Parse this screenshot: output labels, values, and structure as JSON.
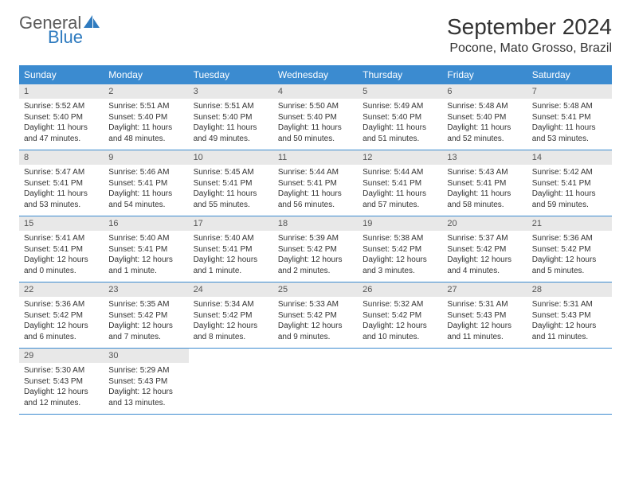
{
  "logo": {
    "general": "General",
    "blue": "Blue"
  },
  "title": "September 2024",
  "location": "Pocone, Mato Grosso, Brazil",
  "colors": {
    "header_bg": "#3b8bd0",
    "header_text": "#ffffff",
    "daynum_bg": "#e8e8e8",
    "week_border": "#3b8bd0",
    "logo_gray": "#5a5a5a",
    "logo_blue": "#2f7bbf"
  },
  "day_labels": [
    "Sunday",
    "Monday",
    "Tuesday",
    "Wednesday",
    "Thursday",
    "Friday",
    "Saturday"
  ],
  "weeks": [
    [
      {
        "n": "1",
        "sr": "Sunrise: 5:52 AM",
        "ss": "Sunset: 5:40 PM",
        "dl": "Daylight: 11 hours and 47 minutes."
      },
      {
        "n": "2",
        "sr": "Sunrise: 5:51 AM",
        "ss": "Sunset: 5:40 PM",
        "dl": "Daylight: 11 hours and 48 minutes."
      },
      {
        "n": "3",
        "sr": "Sunrise: 5:51 AM",
        "ss": "Sunset: 5:40 PM",
        "dl": "Daylight: 11 hours and 49 minutes."
      },
      {
        "n": "4",
        "sr": "Sunrise: 5:50 AM",
        "ss": "Sunset: 5:40 PM",
        "dl": "Daylight: 11 hours and 50 minutes."
      },
      {
        "n": "5",
        "sr": "Sunrise: 5:49 AM",
        "ss": "Sunset: 5:40 PM",
        "dl": "Daylight: 11 hours and 51 minutes."
      },
      {
        "n": "6",
        "sr": "Sunrise: 5:48 AM",
        "ss": "Sunset: 5:40 PM",
        "dl": "Daylight: 11 hours and 52 minutes."
      },
      {
        "n": "7",
        "sr": "Sunrise: 5:48 AM",
        "ss": "Sunset: 5:41 PM",
        "dl": "Daylight: 11 hours and 53 minutes."
      }
    ],
    [
      {
        "n": "8",
        "sr": "Sunrise: 5:47 AM",
        "ss": "Sunset: 5:41 PM",
        "dl": "Daylight: 11 hours and 53 minutes."
      },
      {
        "n": "9",
        "sr": "Sunrise: 5:46 AM",
        "ss": "Sunset: 5:41 PM",
        "dl": "Daylight: 11 hours and 54 minutes."
      },
      {
        "n": "10",
        "sr": "Sunrise: 5:45 AM",
        "ss": "Sunset: 5:41 PM",
        "dl": "Daylight: 11 hours and 55 minutes."
      },
      {
        "n": "11",
        "sr": "Sunrise: 5:44 AM",
        "ss": "Sunset: 5:41 PM",
        "dl": "Daylight: 11 hours and 56 minutes."
      },
      {
        "n": "12",
        "sr": "Sunrise: 5:44 AM",
        "ss": "Sunset: 5:41 PM",
        "dl": "Daylight: 11 hours and 57 minutes."
      },
      {
        "n": "13",
        "sr": "Sunrise: 5:43 AM",
        "ss": "Sunset: 5:41 PM",
        "dl": "Daylight: 11 hours and 58 minutes."
      },
      {
        "n": "14",
        "sr": "Sunrise: 5:42 AM",
        "ss": "Sunset: 5:41 PM",
        "dl": "Daylight: 11 hours and 59 minutes."
      }
    ],
    [
      {
        "n": "15",
        "sr": "Sunrise: 5:41 AM",
        "ss": "Sunset: 5:41 PM",
        "dl": "Daylight: 12 hours and 0 minutes."
      },
      {
        "n": "16",
        "sr": "Sunrise: 5:40 AM",
        "ss": "Sunset: 5:41 PM",
        "dl": "Daylight: 12 hours and 1 minute."
      },
      {
        "n": "17",
        "sr": "Sunrise: 5:40 AM",
        "ss": "Sunset: 5:41 PM",
        "dl": "Daylight: 12 hours and 1 minute."
      },
      {
        "n": "18",
        "sr": "Sunrise: 5:39 AM",
        "ss": "Sunset: 5:42 PM",
        "dl": "Daylight: 12 hours and 2 minutes."
      },
      {
        "n": "19",
        "sr": "Sunrise: 5:38 AM",
        "ss": "Sunset: 5:42 PM",
        "dl": "Daylight: 12 hours and 3 minutes."
      },
      {
        "n": "20",
        "sr": "Sunrise: 5:37 AM",
        "ss": "Sunset: 5:42 PM",
        "dl": "Daylight: 12 hours and 4 minutes."
      },
      {
        "n": "21",
        "sr": "Sunrise: 5:36 AM",
        "ss": "Sunset: 5:42 PM",
        "dl": "Daylight: 12 hours and 5 minutes."
      }
    ],
    [
      {
        "n": "22",
        "sr": "Sunrise: 5:36 AM",
        "ss": "Sunset: 5:42 PM",
        "dl": "Daylight: 12 hours and 6 minutes."
      },
      {
        "n": "23",
        "sr": "Sunrise: 5:35 AM",
        "ss": "Sunset: 5:42 PM",
        "dl": "Daylight: 12 hours and 7 minutes."
      },
      {
        "n": "24",
        "sr": "Sunrise: 5:34 AM",
        "ss": "Sunset: 5:42 PM",
        "dl": "Daylight: 12 hours and 8 minutes."
      },
      {
        "n": "25",
        "sr": "Sunrise: 5:33 AM",
        "ss": "Sunset: 5:42 PM",
        "dl": "Daylight: 12 hours and 9 minutes."
      },
      {
        "n": "26",
        "sr": "Sunrise: 5:32 AM",
        "ss": "Sunset: 5:42 PM",
        "dl": "Daylight: 12 hours and 10 minutes."
      },
      {
        "n": "27",
        "sr": "Sunrise: 5:31 AM",
        "ss": "Sunset: 5:43 PM",
        "dl": "Daylight: 12 hours and 11 minutes."
      },
      {
        "n": "28",
        "sr": "Sunrise: 5:31 AM",
        "ss": "Sunset: 5:43 PM",
        "dl": "Daylight: 12 hours and 11 minutes."
      }
    ],
    [
      {
        "n": "29",
        "sr": "Sunrise: 5:30 AM",
        "ss": "Sunset: 5:43 PM",
        "dl": "Daylight: 12 hours and 12 minutes."
      },
      {
        "n": "30",
        "sr": "Sunrise: 5:29 AM",
        "ss": "Sunset: 5:43 PM",
        "dl": "Daylight: 12 hours and 13 minutes."
      },
      {
        "n": "",
        "sr": "",
        "ss": "",
        "dl": "",
        "empty": true
      },
      {
        "n": "",
        "sr": "",
        "ss": "",
        "dl": "",
        "empty": true
      },
      {
        "n": "",
        "sr": "",
        "ss": "",
        "dl": "",
        "empty": true
      },
      {
        "n": "",
        "sr": "",
        "ss": "",
        "dl": "",
        "empty": true
      },
      {
        "n": "",
        "sr": "",
        "ss": "",
        "dl": "",
        "empty": true
      }
    ]
  ]
}
